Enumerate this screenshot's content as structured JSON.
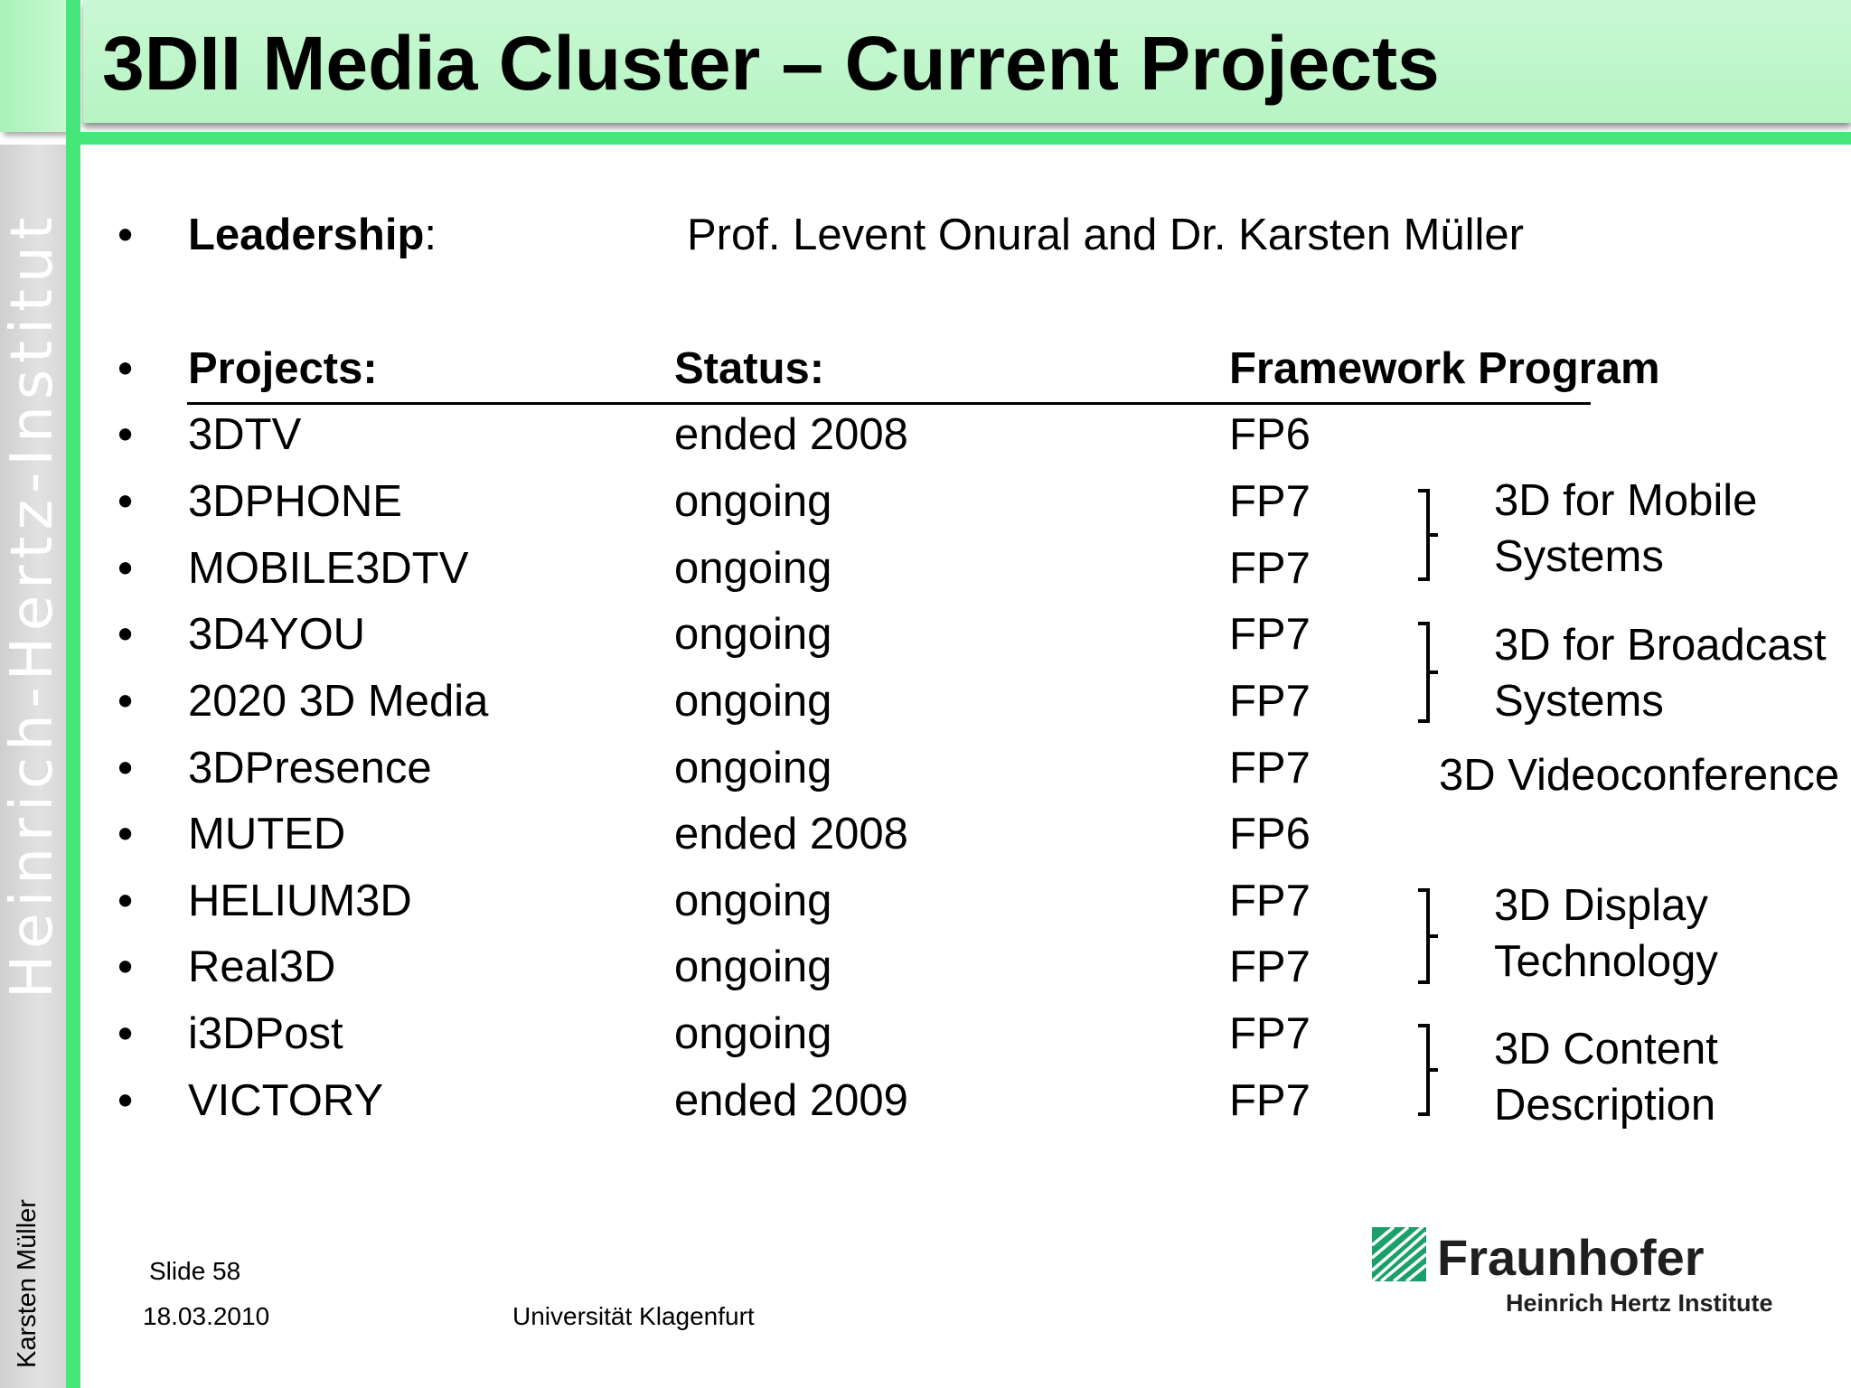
{
  "title": "3DII Media Cluster – Current Projects",
  "sidebar": {
    "institute": "Heinrich-Hertz-Institut",
    "author": "Karsten Müller"
  },
  "bullet": "•",
  "leadership": {
    "label": "Leadership",
    "colon": ":",
    "value": "Prof. Levent Onural and Dr. Karsten Müller"
  },
  "table": {
    "headers": [
      "Projects:",
      "Status:",
      "Framework Program"
    ],
    "rows": [
      [
        "3DTV",
        "ended 2008",
        "FP6"
      ],
      [
        "3DPHONE",
        "ongoing",
        "FP7"
      ],
      [
        "MOBILE3DTV",
        "ongoing",
        "FP7"
      ],
      [
        "3D4YOU",
        "ongoing",
        "FP7"
      ],
      [
        "2020 3D Media",
        "ongoing",
        "FP7"
      ],
      [
        "3DPresence",
        "ongoing",
        "FP7"
      ],
      [
        "MUTED",
        "ended 2008",
        "FP6"
      ],
      [
        "HELIUM3D",
        "ongoing",
        "FP7"
      ],
      [
        "Real3D",
        "ongoing",
        "FP7"
      ],
      [
        "i3DPost",
        "ongoing",
        "FP7"
      ],
      [
        "VICTORY",
        "ended 2009",
        "FP7"
      ]
    ]
  },
  "groups": [
    {
      "line1": "3D for Mobile",
      "line2": "Systems"
    },
    {
      "line1": "3D for Broadcast",
      "line2": "Systems"
    },
    {
      "line1": "3D Videoconference"
    },
    {
      "line1": "3D Display",
      "line2": "Technology"
    },
    {
      "line1": "3D Content",
      "line2": "Description"
    }
  ],
  "footer": {
    "slide": "Slide 58",
    "date": "18.03.2010",
    "university": "Universität Klagenfurt"
  },
  "logo": {
    "name": "Fraunhofer",
    "subtitle": "Heinrich Hertz Institute"
  },
  "colors": {
    "frame_green": "#46e67a",
    "title_bg": "#c0f6cc",
    "sidebar_grey": "#d8d8d8",
    "logo_green": "#1aa068"
  }
}
